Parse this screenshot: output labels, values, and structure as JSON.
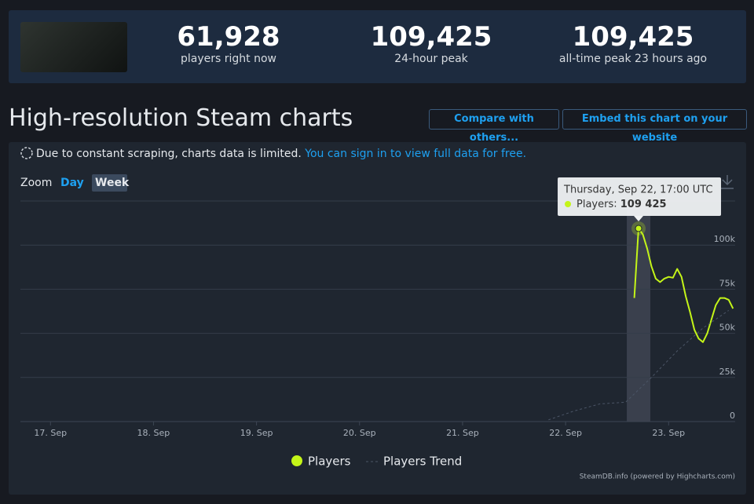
{
  "header": {
    "stats": [
      {
        "value": "61,928",
        "label": "players right now"
      },
      {
        "value": "109,425",
        "label": "24-hour peak"
      },
      {
        "value": "109,425",
        "label": "all-time peak 23 hours ago"
      }
    ]
  },
  "title": "High-resolution Steam charts",
  "buttons": [
    "Compare with others...",
    "Embed this chart on your website"
  ],
  "notice": {
    "text": "Due to constant scraping, charts data is limited.",
    "link": "You can sign in to view full data for free."
  },
  "zoom": {
    "label": "Zoom",
    "options": [
      "Day",
      "Week"
    ]
  },
  "chart_data": {
    "type": "line",
    "xlim": [
      "Sep 16 17:00",
      "Sep 23 15:30"
    ],
    "xticks": [
      {
        "value": "Sep 17 00:00",
        "label": "17. Sep"
      },
      {
        "value": "Sep 18 00:00",
        "label": "18. Sep"
      },
      {
        "value": "Sep 19 00:00",
        "label": "19. Sep"
      },
      {
        "value": "Sep 20 00:00",
        "label": "20. Sep"
      },
      {
        "value": "Sep 21 00:00",
        "label": "21. Sep"
      },
      {
        "value": "Sep 22 00:00",
        "label": "22. Sep"
      },
      {
        "value": "Sep 23 00:00",
        "label": "23. Sep"
      }
    ],
    "ylim": [
      0,
      125000
    ],
    "yticks": [
      0,
      {
        "value": 25000,
        "label": "25k"
      },
      {
        "value": 50000,
        "label": "50k"
      },
      {
        "value": 75000,
        "label": "75k"
      },
      {
        "value": 100000,
        "label": "100k"
      },
      {
        "value": 125000,
        "label": ""
      }
    ],
    "grid": true,
    "series": [
      {
        "name": "Players",
        "color": "#c4f518",
        "x": [
          "Sep 22 16:00",
          "Sep 22 17:00",
          "Sep 22 18:00",
          "Sep 22 19:00",
          "Sep 22 20:00",
          "Sep 22 21:00",
          "Sep 22 22:00",
          "Sep 22 23:00",
          "Sep 23 00:00",
          "Sep 23 01:00",
          "Sep 23 02:00",
          "Sep 23 03:00",
          "Sep 23 04:00",
          "Sep 23 05:00",
          "Sep 23 06:00",
          "Sep 23 07:00",
          "Sep 23 08:00",
          "Sep 23 09:00",
          "Sep 23 10:00",
          "Sep 23 11:00",
          "Sep 23 12:00",
          "Sep 23 13:00",
          "Sep 23 14:00",
          "Sep 23 15:00"
        ],
        "values": [
          70000,
          109425,
          106000,
          98000,
          88000,
          81000,
          79000,
          81000,
          82000,
          81500,
          86500,
          82000,
          71000,
          62000,
          52000,
          47000,
          45000,
          50000,
          58000,
          66000,
          70000,
          70000,
          69000,
          64000
        ],
        "value_labels": [
          null,
          "109 425",
          null,
          null,
          null,
          null,
          null,
          null,
          null,
          null,
          null,
          null,
          null,
          null,
          null,
          null,
          null,
          null,
          null,
          null,
          null,
          null,
          null,
          null
        ]
      },
      {
        "name": "Players Trend",
        "color": "#4b5566",
        "dashed": true,
        "x": [
          "Sep 21 20:00",
          "Sep 22 02:00",
          "Sep 22 08:00",
          "Sep 22 14:00",
          "Sep 22 20:00",
          "Sep 23 02:00",
          "Sep 23 08:00",
          "Sep 23 14:00"
        ],
        "values": [
          1000,
          6000,
          10000,
          11000,
          25000,
          40000,
          53000,
          63000
        ]
      }
    ],
    "tooltip": {
      "title": "Thursday, Sep 22, 17:00 UTC"
    },
    "credit": "SteamDB.info (powered by Highcharts.com)"
  }
}
